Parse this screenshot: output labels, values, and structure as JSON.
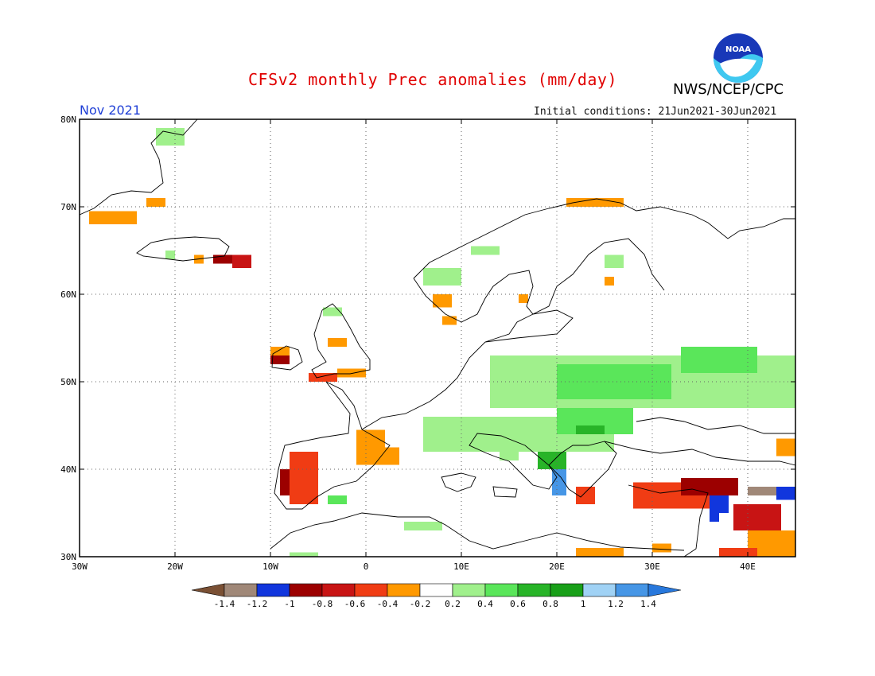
{
  "header": {
    "title": "CFSv2 monthly Prec anomalies (mm/day)",
    "organization": "NWS/NCEP/CPC",
    "month": "Nov 2021",
    "initial_conditions": "Initial conditions: 21Jun2021-30Jun2021",
    "logo_text": "NOAA"
  },
  "map": {
    "region": "Europe",
    "lon_range": [
      -30,
      45
    ],
    "lat_range": [
      30,
      80
    ],
    "lat_labels": [
      {
        "lat": 80,
        "text": "80N"
      },
      {
        "lat": 70,
        "text": "70N"
      },
      {
        "lat": 60,
        "text": "60N"
      },
      {
        "lat": 50,
        "text": "50N"
      },
      {
        "lat": 40,
        "text": "40N"
      },
      {
        "lat": 30,
        "text": "30N"
      }
    ],
    "lon_labels": [
      {
        "lon": -30,
        "text": "30W"
      },
      {
        "lon": -20,
        "text": "20W"
      },
      {
        "lon": -10,
        "text": "10W"
      },
      {
        "lon": 0,
        "text": "0"
      },
      {
        "lon": 10,
        "text": "10E"
      },
      {
        "lon": 20,
        "text": "20E"
      },
      {
        "lon": 30,
        "text": "30E"
      },
      {
        "lon": 40,
        "text": "40E"
      }
    ]
  },
  "legend": {
    "colors": [
      "#7a5034",
      "#a08878",
      "#1136dd",
      "#9c0000",
      "#c81414",
      "#f03c14",
      "#ff9900",
      "#ffffff",
      "#a0f08c",
      "#5ae65a",
      "#28b428",
      "#19a019",
      "#a0d2f5",
      "#4696e6",
      "#2878dc"
    ],
    "labels": [
      "-1.4",
      "-1.2",
      "-1",
      "-0.8",
      "-0.6",
      "-0.4",
      "-0.2",
      "0.2",
      "0.4",
      "0.6",
      "0.8",
      "1",
      "1.2",
      "1.4"
    ]
  },
  "anomaly_cells": [
    {
      "lon": -22,
      "lat": 79,
      "w": 3,
      "h": 2,
      "value": 0.3
    },
    {
      "lon": -29,
      "lat": 69.5,
      "w": 5,
      "h": 1.5,
      "value": -0.3
    },
    {
      "lon": -23,
      "lat": 71,
      "w": 2,
      "h": 1,
      "value": -0.3
    },
    {
      "lon": -14,
      "lat": 64.5,
      "w": 2,
      "h": 1.5,
      "value": -0.7
    },
    {
      "lon": -16,
      "lat": 64.5,
      "w": 2,
      "h": 1,
      "value": -0.9
    },
    {
      "lon": -18,
      "lat": 64.5,
      "w": 1,
      "h": 1,
      "value": -0.4
    },
    {
      "lon": -21,
      "lat": 65,
      "w": 1,
      "h": 1,
      "value": 0.3
    },
    {
      "lon": -10,
      "lat": 53,
      "w": 2,
      "h": 1,
      "value": -0.9
    },
    {
      "lon": -10,
      "lat": 54,
      "w": 2,
      "h": 1,
      "value": -0.3
    },
    {
      "lon": -6,
      "lat": 51,
      "w": 3,
      "h": 1,
      "value": -0.6
    },
    {
      "lon": -3,
      "lat": 51.5,
      "w": 3,
      "h": 1,
      "value": -0.3
    },
    {
      "lon": -4,
      "lat": 55,
      "w": 2,
      "h": 1,
      "value": -0.3
    },
    {
      "lon": -4.5,
      "lat": 58.5,
      "w": 2,
      "h": 1,
      "value": 0.3
    },
    {
      "lon": 7,
      "lat": 60,
      "w": 2,
      "h": 1.5,
      "value": -0.3
    },
    {
      "lon": 8,
      "lat": 57.5,
      "w": 1.5,
      "h": 1,
      "value": -0.3
    },
    {
      "lon": 6,
      "lat": 63,
      "w": 4,
      "h": 2,
      "value": 0.3
    },
    {
      "lon": 11,
      "lat": 65.5,
      "w": 3,
      "h": 1,
      "value": 0.3
    },
    {
      "lon": 21,
      "lat": 71,
      "w": 6,
      "h": 1,
      "value": -0.3
    },
    {
      "lon": 25,
      "lat": 62,
      "w": 1,
      "h": 1,
      "value": -0.3
    },
    {
      "lon": 16,
      "lat": 60,
      "w": 1,
      "h": 1,
      "value": -0.3
    },
    {
      "lon": 25,
      "lat": 64.5,
      "w": 2,
      "h": 1.5,
      "value": 0.3
    },
    {
      "lon": 13,
      "lat": 53,
      "w": 32,
      "h": 6,
      "value": 0.3
    },
    {
      "lon": 20,
      "lat": 52,
      "w": 12,
      "h": 4,
      "value": 0.5
    },
    {
      "lon": 33,
      "lat": 54,
      "w": 8,
      "h": 3,
      "value": 0.5
    },
    {
      "lon": 6,
      "lat": 46,
      "w": 20,
      "h": 4,
      "value": 0.3
    },
    {
      "lon": 20,
      "lat": 47,
      "w": 8,
      "h": 3,
      "value": 0.5
    },
    {
      "lon": 22,
      "lat": 45,
      "w": 3,
      "h": 1,
      "value": 0.7
    },
    {
      "lon": 18,
      "lat": 42,
      "w": 3,
      "h": 2,
      "value": 0.7
    },
    {
      "lon": 19.5,
      "lat": 40,
      "w": 1.5,
      "h": 3,
      "value": 1.3
    },
    {
      "lon": -8,
      "lat": 42,
      "w": 3,
      "h": 6,
      "value": -0.6
    },
    {
      "lon": -9,
      "lat": 40,
      "w": 1,
      "h": 3,
      "value": -0.9
    },
    {
      "lon": -1,
      "lat": 44.5,
      "w": 3,
      "h": 4,
      "value": -0.3
    },
    {
      "lon": 2,
      "lat": 42.5,
      "w": 1.5,
      "h": 2,
      "value": -0.3
    },
    {
      "lon": 22,
      "lat": 38,
      "w": 2,
      "h": 2,
      "value": -0.6
    },
    {
      "lon": 28,
      "lat": 38.5,
      "w": 8,
      "h": 3,
      "value": -0.5
    },
    {
      "lon": 33,
      "lat": 39,
      "w": 6,
      "h": 2,
      "value": -0.9
    },
    {
      "lon": 36,
      "lat": 37,
      "w": 2,
      "h": 2,
      "value": -1.1
    },
    {
      "lon": 38.5,
      "lat": 36,
      "w": 5,
      "h": 3,
      "value": -0.8
    },
    {
      "lon": 40,
      "lat": 38,
      "w": 3,
      "h": 1,
      "value": -1.3
    },
    {
      "lon": 43,
      "lat": 38,
      "w": 2,
      "h": 1.5,
      "value": -1.1
    },
    {
      "lon": 36,
      "lat": 35.5,
      "w": 1,
      "h": 1.5,
      "value": -1.1
    },
    {
      "lon": 40,
      "lat": 33,
      "w": 5,
      "h": 5,
      "value": -0.3
    },
    {
      "lon": 43,
      "lat": 43.5,
      "w": 2,
      "h": 2,
      "value": -0.3
    },
    {
      "lon": 37,
      "lat": 31,
      "w": 4,
      "h": 3,
      "value": -0.5
    },
    {
      "lon": 22,
      "lat": 31,
      "w": 5,
      "h": 1,
      "value": -0.3
    },
    {
      "lon": 30,
      "lat": 31.5,
      "w": 2,
      "h": 1,
      "value": -0.3
    },
    {
      "lon": 4,
      "lat": 34,
      "w": 4,
      "h": 1,
      "value": 0.3
    },
    {
      "lon": -8,
      "lat": 30.5,
      "w": 3,
      "h": 1.5,
      "value": 0.3
    },
    {
      "lon": -4,
      "lat": 37,
      "w": 2,
      "h": 1,
      "value": 0.5
    },
    {
      "lon": 14,
      "lat": 42,
      "w": 2,
      "h": 1,
      "value": 0.3
    }
  ]
}
